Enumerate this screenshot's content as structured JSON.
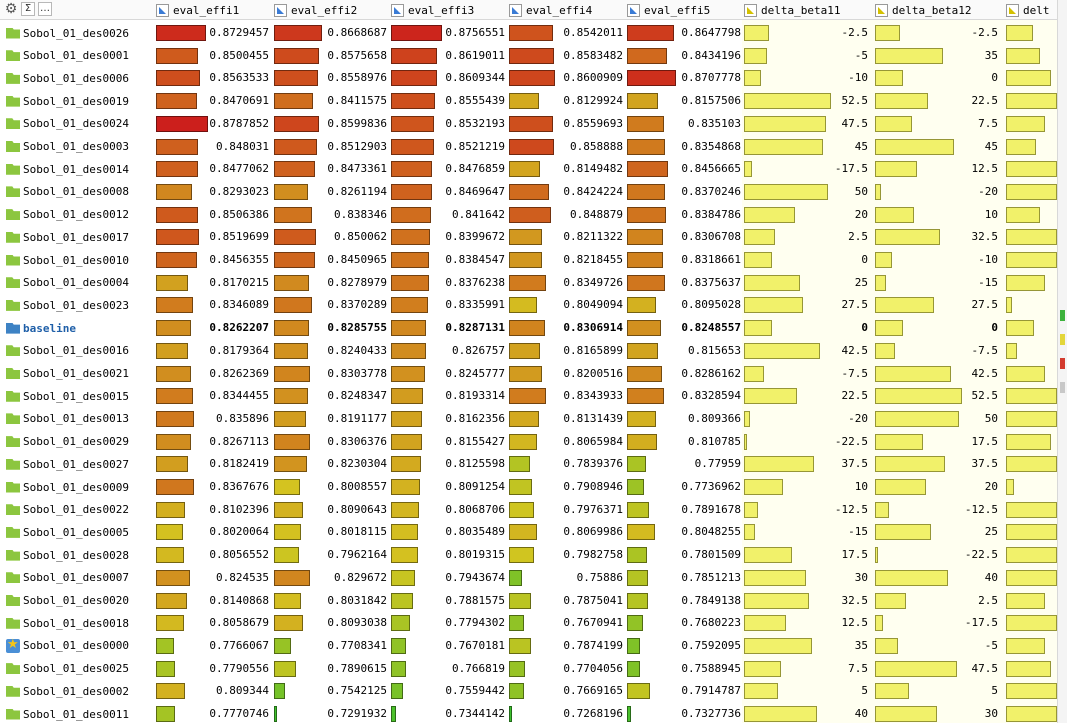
{
  "header": {
    "tools": [
      "⚙",
      "Σ",
      "…"
    ],
    "columns": [
      {
        "label": "eval_effi1",
        "type": "continuous"
      },
      {
        "label": "eval_effi2",
        "type": "continuous"
      },
      {
        "label": "eval_effi3",
        "type": "continuous"
      },
      {
        "label": "eval_effi4",
        "type": "continuous"
      },
      {
        "label": "eval_effi5",
        "type": "continuous"
      },
      {
        "label": "delta_beta11",
        "type": "parameter"
      },
      {
        "label": "delta_beta12",
        "type": "parameter"
      },
      {
        "label": "delt",
        "type": "parameter"
      }
    ]
  },
  "effi_range": {
    "min": 0.72,
    "max": 0.88
  },
  "delta_range": {
    "min": -25,
    "max": 55
  },
  "colors": {
    "low": "#2ec02e",
    "mid": "#d4c520",
    "high": "#cc1c1c",
    "delta_bar": "#f1f16a"
  },
  "rows": [
    {
      "name": "Sobol_01_des0026",
      "icon": "folder",
      "values": [
        "0.8729457",
        "0.8668687",
        "0.8756551",
        "0.8542011",
        "0.8647798"
      ],
      "deltas": [
        "-2.5",
        "-2.5"
      ],
      "delta3": -1
    },
    {
      "name": "Sobol_01_des0001",
      "icon": "folder",
      "values": [
        "0.8500455",
        "0.8575658",
        "0.8619011",
        "0.8583482",
        "0.8434196"
      ],
      "deltas": [
        "-5",
        "35"
      ],
      "delta3": 5
    },
    {
      "name": "Sobol_01_des0006",
      "icon": "folder",
      "values": [
        "0.8563533",
        "0.8558976",
        "0.8609344",
        "0.8600909",
        "0.8707778"
      ],
      "deltas": [
        "-10",
        "0"
      ],
      "delta3": 15
    },
    {
      "name": "Sobol_01_des0019",
      "icon": "folder",
      "values": [
        "0.8470691",
        "0.8411575",
        "0.8555439",
        "0.8129924",
        "0.8157506"
      ],
      "deltas": [
        "52.5",
        "22.5"
      ],
      "delta3": 30
    },
    {
      "name": "Sobol_01_des0024",
      "icon": "folder",
      "values": [
        "0.8787852",
        "0.8599836",
        "0.8532193",
        "0.8559693",
        "0.835103"
      ],
      "deltas": [
        "47.5",
        "7.5"
      ],
      "delta3": 10
    },
    {
      "name": "Sobol_01_des0003",
      "icon": "folder",
      "values": [
        "0.848031",
        "0.8512903",
        "0.8521219",
        "0.858888",
        "0.8354868"
      ],
      "deltas": [
        "45",
        "45"
      ],
      "delta3": 2
    },
    {
      "name": "Sobol_01_des0014",
      "icon": "folder",
      "values": [
        "0.8477062",
        "0.8473361",
        "0.8476859",
        "0.8149482",
        "0.8456665"
      ],
      "deltas": [
        "-17.5",
        "12.5"
      ],
      "delta3": 25
    },
    {
      "name": "Sobol_01_des0008",
      "icon": "folder",
      "values": [
        "0.8293023",
        "0.8261194",
        "0.8469647",
        "0.8424224",
        "0.8370246"
      ],
      "deltas": [
        "50",
        "-20"
      ],
      "delta3": 20
    },
    {
      "name": "Sobol_01_des0012",
      "icon": "folder",
      "values": [
        "0.8506386",
        "0.838346",
        "0.841642",
        "0.848879",
        "0.8384786"
      ],
      "deltas": [
        "20",
        "10"
      ],
      "delta3": 5
    },
    {
      "name": "Sobol_01_des0017",
      "icon": "folder",
      "values": [
        "0.8519699",
        "0.850062",
        "0.8399672",
        "0.8211322",
        "0.8306708"
      ],
      "deltas": [
        "2.5",
        "32.5"
      ],
      "delta3": 40
    },
    {
      "name": "Sobol_01_des0010",
      "icon": "folder",
      "values": [
        "0.8456355",
        "0.8450965",
        "0.8384547",
        "0.8218455",
        "0.8318661"
      ],
      "deltas": [
        "0",
        "-10"
      ],
      "delta3": 40
    },
    {
      "name": "Sobol_01_des0004",
      "icon": "folder",
      "values": [
        "0.8170215",
        "0.8278979",
        "0.8376238",
        "0.8349726",
        "0.8375637"
      ],
      "deltas": [
        "25",
        "-15"
      ],
      "delta3": 10
    },
    {
      "name": "Sobol_01_des0023",
      "icon": "folder",
      "values": [
        "0.8346089",
        "0.8370289",
        "0.8335991",
        "0.8049094",
        "0.8095028"
      ],
      "deltas": [
        "27.5",
        "27.5"
      ],
      "delta3": -20
    },
    {
      "name": "baseline",
      "icon": "baseline",
      "values": [
        "0.8262207",
        "0.8285755",
        "0.8287131",
        "0.8306914",
        "0.8248557"
      ],
      "deltas": [
        "0",
        "0"
      ],
      "delta3": 0,
      "bold": true
    },
    {
      "name": "Sobol_01_des0016",
      "icon": "folder",
      "values": [
        "0.8179364",
        "0.8240433",
        "0.826757",
        "0.8165899",
        "0.815653"
      ],
      "deltas": [
        "42.5",
        "-7.5"
      ],
      "delta3": -15
    },
    {
      "name": "Sobol_01_des0021",
      "icon": "folder",
      "values": [
        "0.8262369",
        "0.8303778",
        "0.8245777",
        "0.8200516",
        "0.8286162"
      ],
      "deltas": [
        "-7.5",
        "42.5"
      ],
      "delta3": 10
    },
    {
      "name": "Sobol_01_des0015",
      "icon": "folder",
      "values": [
        "0.8344455",
        "0.8248347",
        "0.8193314",
        "0.8343933",
        "0.8328594"
      ],
      "deltas": [
        "22.5",
        "52.5"
      ],
      "delta3": 45
    },
    {
      "name": "Sobol_01_des0013",
      "icon": "folder",
      "values": [
        "0.835896",
        "0.8191177",
        "0.8162356",
        "0.8131439",
        "0.809366"
      ],
      "deltas": [
        "-20",
        "50"
      ],
      "delta3": 30
    },
    {
      "name": "Sobol_01_des0029",
      "icon": "folder",
      "values": [
        "0.8267113",
        "0.8306376",
        "0.8155427",
        "0.8065984",
        "0.810785"
      ],
      "deltas": [
        "-22.5",
        "17.5"
      ],
      "delta3": 15
    },
    {
      "name": "Sobol_01_des0027",
      "icon": "folder",
      "values": [
        "0.8182419",
        "0.8230304",
        "0.8125598",
        "0.7839376",
        "0.77959"
      ],
      "deltas": [
        "37.5",
        "37.5"
      ],
      "delta3": 35
    },
    {
      "name": "Sobol_01_des0009",
      "icon": "folder",
      "values": [
        "0.8367676",
        "0.8008557",
        "0.8091254",
        "0.7908946",
        "0.7736962"
      ],
      "deltas": [
        "10",
        "20"
      ],
      "delta3": -18
    },
    {
      "name": "Sobol_01_des0022",
      "icon": "folder",
      "values": [
        "0.8102396",
        "0.8090643",
        "0.8068706",
        "0.7976371",
        "0.7891678"
      ],
      "deltas": [
        "-12.5",
        "-12.5"
      ],
      "delta3": 30
    },
    {
      "name": "Sobol_01_des0005",
      "icon": "folder",
      "values": [
        "0.8020064",
        "0.8018115",
        "0.8035489",
        "0.8069986",
        "0.8048255"
      ],
      "deltas": [
        "-15",
        "25"
      ],
      "delta3": 40
    },
    {
      "name": "Sobol_01_des0028",
      "icon": "folder",
      "values": [
        "0.8056552",
        "0.7962164",
        "0.8019315",
        "0.7982758",
        "0.7801509"
      ],
      "deltas": [
        "17.5",
        "-22.5"
      ],
      "delta3": 35
    },
    {
      "name": "Sobol_01_des0007",
      "icon": "folder",
      "values": [
        "0.824535",
        "0.829672",
        "0.7943674",
        "0.75886",
        "0.7851213"
      ],
      "deltas": [
        "30",
        "40"
      ],
      "delta3": 45
    },
    {
      "name": "Sobol_01_des0020",
      "icon": "folder",
      "values": [
        "0.8140868",
        "0.8031842",
        "0.7881575",
        "0.7875041",
        "0.7849138"
      ],
      "deltas": [
        "32.5",
        "2.5"
      ],
      "delta3": 10
    },
    {
      "name": "Sobol_01_des0018",
      "icon": "folder",
      "values": [
        "0.8058679",
        "0.8093038",
        "0.7794302",
        "0.7670941",
        "0.7680223"
      ],
      "deltas": [
        "12.5",
        "-17.5"
      ],
      "delta3": 30
    },
    {
      "name": "Sobol_01_des0000",
      "icon": "star",
      "values": [
        "0.7766067",
        "0.7708341",
        "0.7670181",
        "0.7874199",
        "0.7592095"
      ],
      "deltas": [
        "35",
        "-5"
      ],
      "delta3": 10
    },
    {
      "name": "Sobol_01_des0025",
      "icon": "folder",
      "values": [
        "0.7790556",
        "0.7890615",
        "0.766819",
        "0.7704056",
        "0.7588945"
      ],
      "deltas": [
        "7.5",
        "47.5"
      ],
      "delta3": 15
    },
    {
      "name": "Sobol_01_des0002",
      "icon": "folder",
      "values": [
        "0.809344",
        "0.7542125",
        "0.7559442",
        "0.7669165",
        "0.7914787"
      ],
      "deltas": [
        "5",
        "5"
      ],
      "delta3": 40
    },
    {
      "name": "Sobol_01_des0011",
      "icon": "folder",
      "values": [
        "0.7770746",
        "0.7291932",
        "0.7344142",
        "0.7268196",
        "0.7327736"
      ],
      "deltas": [
        "40",
        "30"
      ],
      "delta3": 30
    }
  ]
}
